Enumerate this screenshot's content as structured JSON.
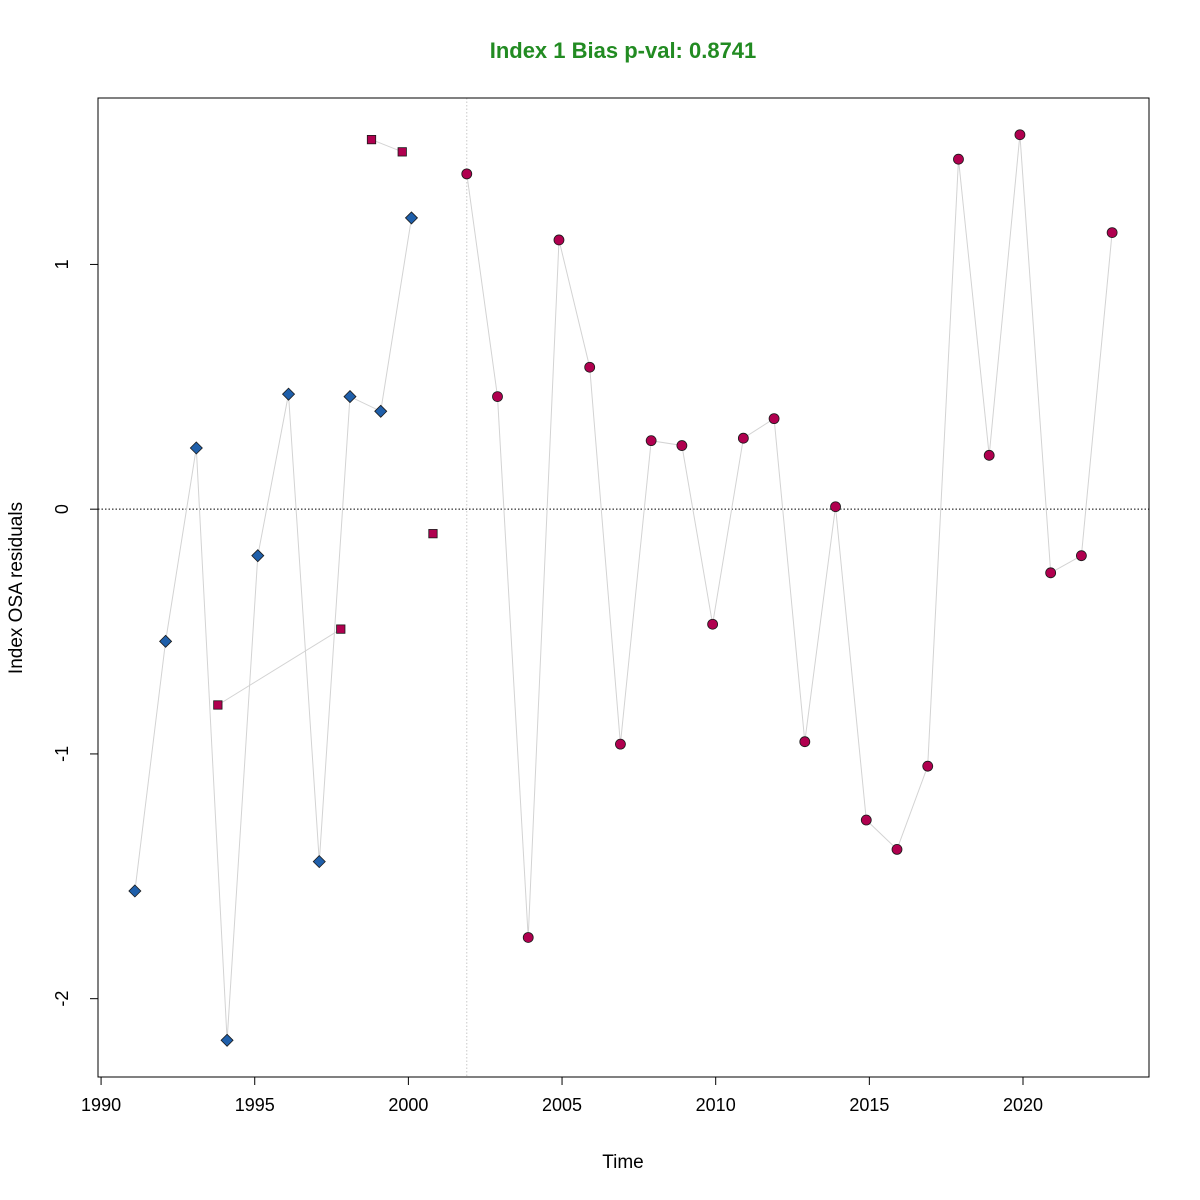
{
  "chart_data": {
    "type": "scatter",
    "title": "Index 1 Bias p-val: 0.8741",
    "title_color": "#228B22",
    "xlabel": "Time",
    "ylabel": "Index OSA residuals",
    "xlim": [
      1989.9,
      2024.1
    ],
    "ylim": [
      -2.32,
      1.68
    ],
    "x_ticks": [
      1990,
      1995,
      2000,
      2005,
      2010,
      2015,
      2020
    ],
    "y_ticks": [
      -2,
      -1,
      0,
      1
    ],
    "reference_hline": 0,
    "reference_vline": 2001.9,
    "line_color": "#d3d3d3",
    "series": [
      {
        "marker": "diamond",
        "color": "#1f5faa",
        "points": [
          [
            1991.1,
            -1.56
          ],
          [
            1992.1,
            -0.54
          ],
          [
            1993.1,
            0.25
          ],
          [
            1994.1,
            -2.17
          ],
          [
            1995.1,
            -0.19
          ],
          [
            1996.1,
            0.47
          ],
          [
            1997.1,
            -1.44
          ],
          [
            1998.1,
            0.46
          ],
          [
            1999.1,
            0.4
          ],
          [
            2000.1,
            1.19
          ]
        ]
      },
      {
        "marker": "square",
        "color": "#b0004f",
        "segments": [
          [
            [
              1993.8,
              -0.8
            ],
            [
              1997.8,
              -0.49
            ]
          ],
          [
            [
              1998.8,
              1.51
            ],
            [
              1999.8,
              1.46
            ]
          ]
        ],
        "points": [
          [
            1993.8,
            -0.8
          ],
          [
            1997.8,
            -0.49
          ],
          [
            1998.8,
            1.51
          ],
          [
            1999.8,
            1.46
          ],
          [
            2000.8,
            -0.1
          ]
        ]
      },
      {
        "marker": "circle",
        "color": "#b0004f",
        "points": [
          [
            2001.9,
            1.37
          ],
          [
            2002.9,
            0.46
          ],
          [
            2003.9,
            -1.75
          ],
          [
            2004.9,
            1.1
          ],
          [
            2005.9,
            0.58
          ],
          [
            2006.9,
            -0.96
          ],
          [
            2007.9,
            0.28
          ],
          [
            2008.9,
            0.26
          ],
          [
            2009.9,
            -0.47
          ],
          [
            2010.9,
            0.29
          ],
          [
            2011.9,
            0.37
          ],
          [
            2012.9,
            -0.95
          ],
          [
            2013.9,
            0.01
          ],
          [
            2014.9,
            -1.27
          ],
          [
            2015.9,
            -1.39
          ],
          [
            2016.9,
            -1.05
          ],
          [
            2017.9,
            1.43
          ],
          [
            2018.9,
            0.22
          ],
          [
            2019.9,
            1.53
          ],
          [
            2020.9,
            -0.26
          ],
          [
            2021.9,
            -0.19
          ],
          [
            2022.9,
            1.13
          ]
        ]
      }
    ]
  }
}
